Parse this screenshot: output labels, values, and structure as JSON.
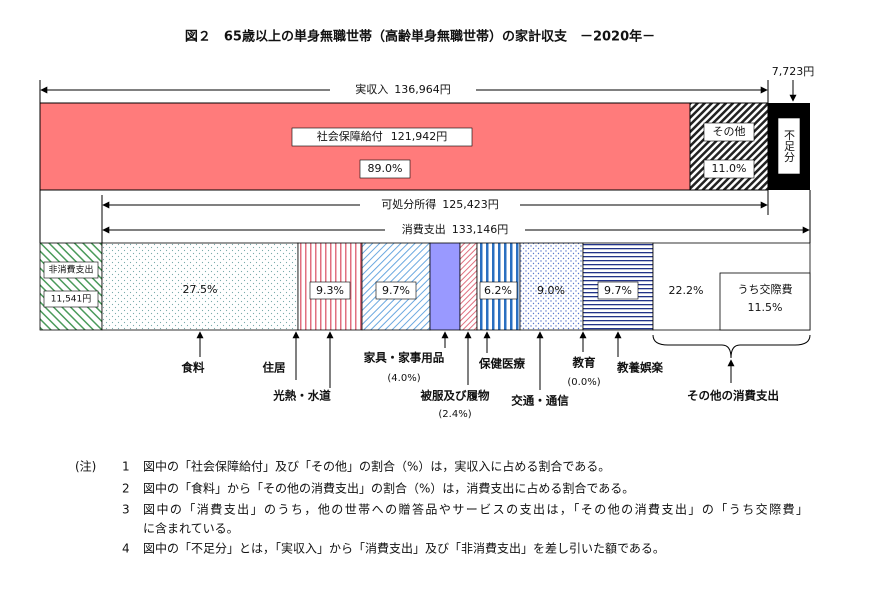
{
  "title": "図２　65歳以上の単身無職世帯（高齢単身無職世帯）の家計収支　－2020年－",
  "income": {
    "label": "実収入",
    "amount": "136,964円",
    "social_security_label": "社会保障給付",
    "social_security_amount": "121,942円",
    "social_security_pct": "89.0%",
    "other_label": "その他",
    "other_pct": "11.0%",
    "shortfall_label": "不足分",
    "shortfall_amount": "7,723円"
  },
  "disposable": {
    "label": "可処分所得",
    "amount": "125,423円"
  },
  "spending": {
    "label": "消費支出",
    "amount": "133,146円"
  },
  "non_consumption": {
    "label": "非消費支出",
    "amount": "11,541円"
  },
  "categories": [
    {
      "label": "食料",
      "pct": "27.5%"
    },
    {
      "label": "住居",
      "pct": "9.3%"
    },
    {
      "label": "光熱・水道",
      "pct": "9.7%"
    },
    {
      "label": "家具・家事用品",
      "pct": "(4.0%)"
    },
    {
      "label": "被服及び履物",
      "pct": "(2.4%)"
    },
    {
      "label": "保健医療",
      "pct": "6.2%"
    },
    {
      "label": "交通・通信",
      "pct": "9.0%"
    },
    {
      "label": "教育",
      "pct": "(0.0%)"
    },
    {
      "label": "教養娯楽",
      "pct": "9.7%"
    },
    {
      "label": "その他の消費支出",
      "pct": "22.2%",
      "sub_label": "うち交際費",
      "sub_pct": "11.5%"
    }
  ],
  "notes": {
    "marker": "(注)",
    "items": [
      {
        "number": "1",
        "lines": [
          "図中の「社会保障給付」及び「その他」の割合（%）は，実収入に占める割合である。"
        ]
      },
      {
        "number": "2",
        "lines": [
          "図中の「食料」から「その他の消費支出」の割合（%）は，消費支出に占める割合である。"
        ]
      },
      {
        "number": "3",
        "lines": [
          "図中の「消費支出」のうち，他の世帯への贈答品やサービスの支出は，「その他の消費支出」の「うち交際費」",
          "に含まれている。"
        ]
      },
      {
        "number": "4",
        "lines": [
          "図中の「不足分」とは，「実収入」から「消費支出」及び「非消費支出」を差し引いた額である。"
        ]
      }
    ]
  }
}
